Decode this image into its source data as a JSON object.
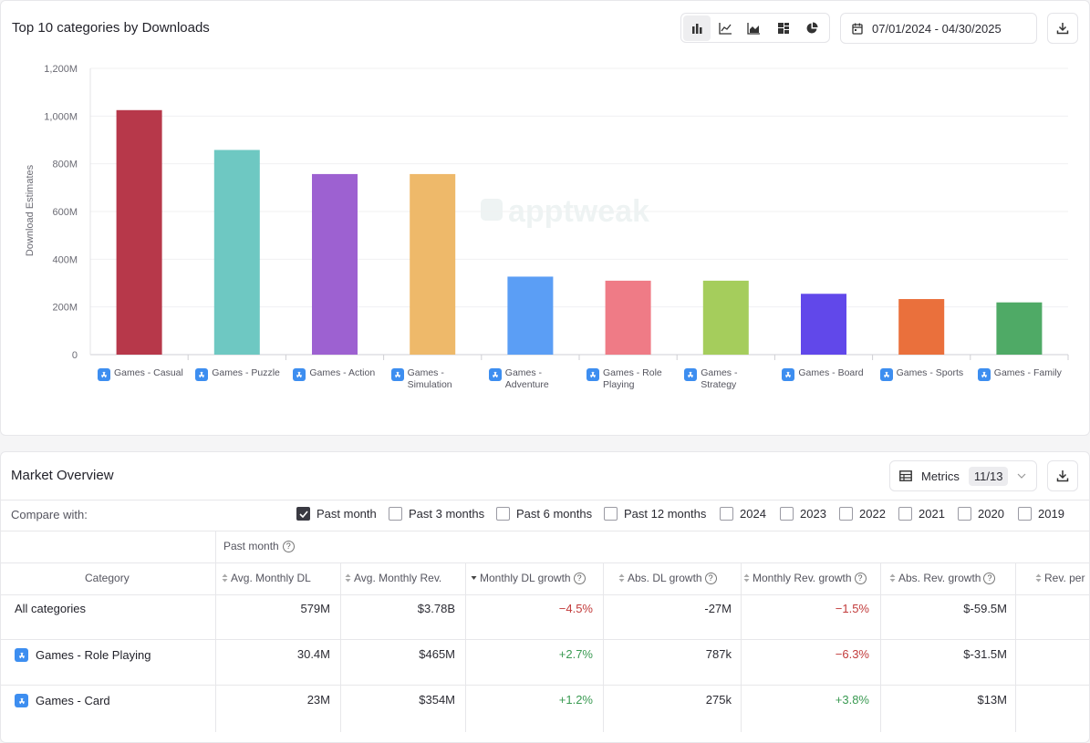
{
  "chart_section": {
    "title": "Top 10 categories by Downloads",
    "chart_types": [
      {
        "icon": "bar-chart-icon",
        "active": true
      },
      {
        "icon": "line-chart-icon",
        "active": false
      },
      {
        "icon": "area-chart-icon",
        "active": false
      },
      {
        "icon": "treemap-icon",
        "active": false
      },
      {
        "icon": "pie-chart-icon",
        "active": false
      }
    ],
    "date_range": "07/01/2024 - 04/30/2025",
    "download_icon": "download-icon",
    "watermark": "apptweak"
  },
  "chart_data": {
    "type": "bar",
    "title": "Top 10 categories by Downloads",
    "ylabel": "Download Estimates",
    "xlabel": "",
    "ylim": [
      0,
      1200
    ],
    "y_ticks": [
      "0",
      "200M",
      "400M",
      "600M",
      "800M",
      "1,000M",
      "1,200M"
    ],
    "grid": true,
    "categories": [
      "Games - Casual",
      "Games - Puzzle",
      "Games - Action",
      "Games - Simulation",
      "Games - Adventure",
      "Games - Role Playing",
      "Games - Strategy",
      "Games - Board",
      "Games - Sports",
      "Games - Family"
    ],
    "values": [
      1025,
      858,
      757,
      757,
      327,
      310,
      310,
      255,
      233,
      219
    ],
    "colors": [
      "#b7384a",
      "#6ec8c2",
      "#9d61d1",
      "#eeb96a",
      "#5b9ef5",
      "#ef7b86",
      "#a5cd5c",
      "#6148ea",
      "#ea703c",
      "#4faa66"
    ],
    "units": "M"
  },
  "market_overview": {
    "title": "Market Overview",
    "metrics_label": "Metrics",
    "metrics_count": "11/13",
    "compare_label": "Compare with:",
    "compare_options": [
      {
        "label": "Past month",
        "checked": true
      },
      {
        "label": "Past 3 months",
        "checked": false
      },
      {
        "label": "Past 6 months",
        "checked": false
      },
      {
        "label": "Past 12 months",
        "checked": false
      },
      {
        "label": "2024",
        "checked": false
      },
      {
        "label": "2023",
        "checked": false
      },
      {
        "label": "2022",
        "checked": false
      },
      {
        "label": "2021",
        "checked": false
      },
      {
        "label": "2020",
        "checked": false
      },
      {
        "label": "2019",
        "checked": false
      }
    ],
    "period_header": "Past month",
    "columns": [
      "Category",
      "Avg. Monthly DL",
      "Avg. Monthly Rev.",
      "Monthly DL growth",
      "Abs. DL growth",
      "Monthly Rev. growth",
      "Abs. Rev. growth",
      "Rev. per"
    ],
    "rows": [
      {
        "category": "All categories",
        "has_icon": false,
        "avg_dl": "579M",
        "avg_rev": "$3.78B",
        "dl_growth": "−4.5%",
        "abs_dl": "-27M",
        "rev_growth": "−1.5%",
        "abs_rev": "$-59.5M"
      },
      {
        "category": "Games - Role Playing",
        "has_icon": true,
        "avg_dl": "30.4M",
        "avg_rev": "$465M",
        "dl_growth": "+2.7%",
        "abs_dl": "787k",
        "rev_growth": "−6.3%",
        "abs_rev": "$-31.5M"
      },
      {
        "category": "Games - Card",
        "has_icon": true,
        "avg_dl": "23M",
        "avg_rev": "$354M",
        "dl_growth": "+1.2%",
        "abs_dl": "275k",
        "rev_growth": "+3.8%",
        "abs_rev": "$13M"
      }
    ]
  }
}
